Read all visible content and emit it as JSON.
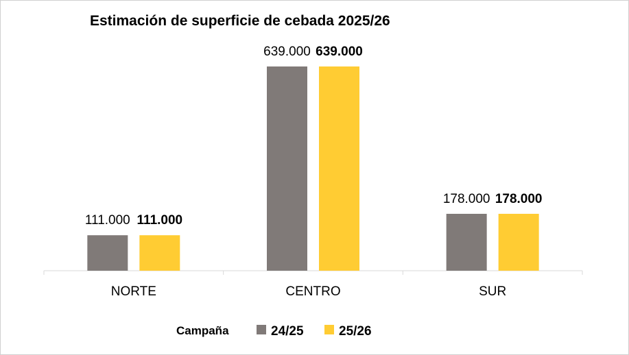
{
  "chart_data": {
    "type": "bar",
    "title": "Estimación de superficie de cebada 2025/26",
    "categories": [
      "NORTE",
      "CENTRO",
      "SUR"
    ],
    "series": [
      {
        "name": "24/25",
        "values": [
          111000,
          639000,
          178000
        ],
        "labels": [
          "111.000",
          "639.000",
          "178.000"
        ],
        "color": "#807a78",
        "label_bold": false
      },
      {
        "name": "25/26",
        "values": [
          111000,
          639000,
          178000
        ],
        "labels": [
          "111.000",
          "639.000",
          "178.000"
        ],
        "color": "#ffcc33",
        "label_bold": true
      }
    ],
    "legend": {
      "title": "Campaña",
      "position": "bottom"
    },
    "xlabel": "",
    "ylabel": "",
    "ylim": [
      0,
      700000
    ],
    "grid": false
  }
}
